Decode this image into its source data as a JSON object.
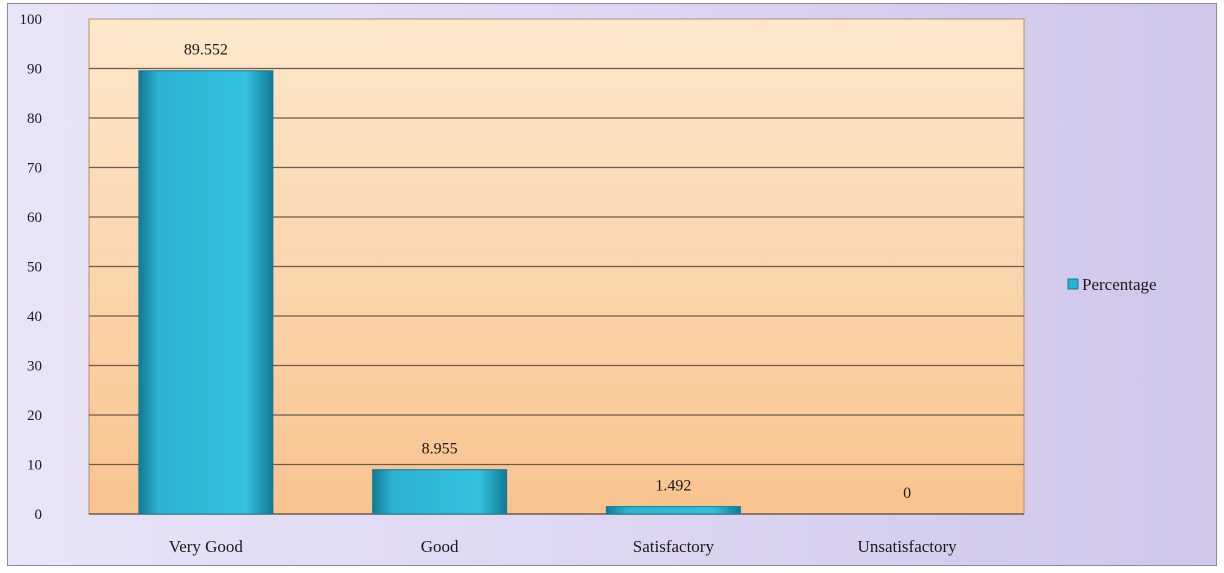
{
  "chart_data": {
    "type": "bar",
    "categories": [
      "Very Good",
      "Good",
      "Satisfactory",
      "Unsatisfactory"
    ],
    "series": [
      {
        "name": "Percentage",
        "values": [
          89.552,
          8.955,
          1.492,
          0
        ]
      }
    ],
    "data_labels": [
      "89.552",
      "8.955",
      "1.492",
      "0"
    ],
    "ylim": [
      0,
      100
    ],
    "yticks": [
      0,
      10,
      20,
      30,
      40,
      50,
      60,
      70,
      80,
      90,
      100
    ],
    "grid": true,
    "legend": "right",
    "colors": {
      "bar": "#2bb3d4",
      "bar_dark": "#137a95",
      "plot_bg_top": "#fde8cc",
      "plot_bg_bottom": "#f8c38e",
      "gridline": "#6e5a4a",
      "chart_bg": "#ddd6f1"
    }
  }
}
